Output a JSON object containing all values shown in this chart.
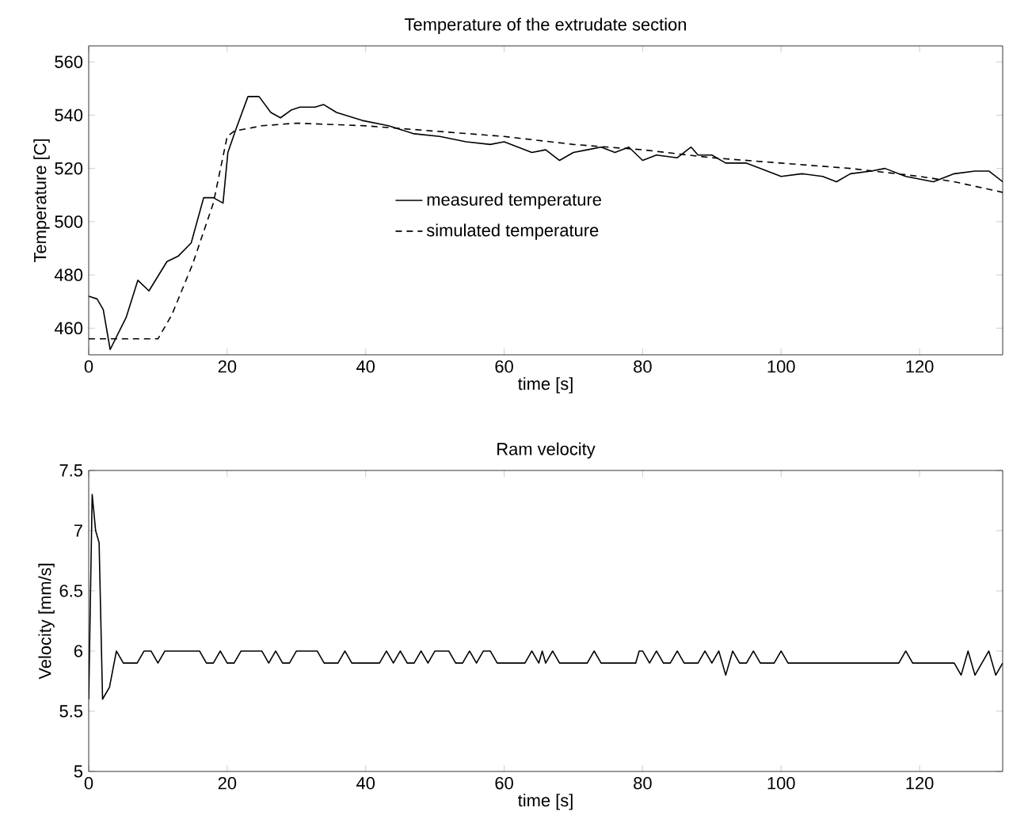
{
  "chart_data": [
    {
      "type": "line",
      "title": "Temperature of the extrudate section",
      "xlabel": "time [s]",
      "ylabel": "Temperature [C]",
      "xlim": [
        0,
        132
      ],
      "ylim": [
        450,
        566
      ],
      "xticks": [
        0,
        20,
        40,
        60,
        80,
        100,
        120
      ],
      "yticks": [
        460,
        480,
        500,
        520,
        540,
        560
      ],
      "legend": "center",
      "series": [
        {
          "name": "measured temperature",
          "color": "#000000",
          "line_style": "solid",
          "x": [
            0,
            1.2,
            2.1,
            3.1,
            3.5,
            4.5,
            5.4,
            7.1,
            8.7,
            11.3,
            12.9,
            14.8,
            16.6,
            18,
            19.4,
            20.1,
            21.3,
            23,
            24.6,
            26.3,
            27.7,
            29.3,
            30.5,
            32.7,
            33.9,
            35.8,
            39.5,
            43.3,
            47,
            50.7,
            54.5,
            58,
            60,
            62,
            64,
            66,
            68,
            70,
            72,
            74,
            76,
            78,
            80,
            82,
            85,
            87,
            88,
            90,
            92,
            95,
            98,
            100,
            103,
            106,
            108,
            110,
            113,
            115,
            118,
            122,
            125,
            128,
            130,
            132
          ],
          "values": [
            472,
            471,
            467,
            452,
            null,
            null,
            464,
            478,
            474,
            485,
            487,
            492,
            509,
            509,
            507,
            526,
            535,
            547,
            547,
            541,
            539,
            542,
            543,
            543,
            544,
            541,
            538,
            536,
            533,
            532,
            530,
            529,
            530,
            528,
            526,
            527,
            523,
            526,
            527,
            528,
            526,
            528,
            523,
            525,
            524,
            528,
            525,
            525,
            522,
            522,
            519,
            517,
            518,
            517,
            515,
            518,
            519,
            520,
            517,
            515,
            518,
            519,
            519,
            515
          ]
        },
        {
          "name": "simulated temperature",
          "color": "#000000",
          "line_style": "dashed",
          "x": [
            0,
            10,
            12,
            15,
            18,
            20,
            21,
            25,
            30,
            40,
            50,
            60,
            70,
            80,
            90,
            100,
            110,
            120,
            125,
            132
          ],
          "values": [
            456,
            456,
            465,
            484,
            507,
            532,
            534,
            536,
            537,
            536,
            534,
            532,
            529,
            527,
            524,
            522,
            520,
            517,
            515,
            511
          ]
        }
      ]
    },
    {
      "type": "line",
      "title": "Ram velocity",
      "xlabel": "time [s]",
      "ylabel": "Velocity [mm/s]",
      "xlim": [
        0,
        132
      ],
      "ylim": [
        5,
        7.5
      ],
      "xticks": [
        0,
        20,
        40,
        60,
        80,
        100,
        120
      ],
      "yticks": [
        5,
        5.5,
        6,
        6.5,
        7,
        7.5
      ],
      "series": [
        {
          "color": "#000000",
          "line_style": "solid",
          "x": [
            0,
            0.5,
            1,
            1.5,
            2,
            3,
            4,
            5,
            7,
            8,
            9,
            10,
            11,
            16,
            17,
            18,
            19,
            20,
            21,
            22,
            25,
            26,
            27,
            28,
            29,
            30,
            33,
            34,
            36,
            37,
            38,
            42,
            43,
            44,
            45,
            46,
            47,
            48,
            49,
            50,
            52,
            53,
            54,
            55,
            56,
            57,
            58,
            59,
            63,
            64,
            65,
            65.5,
            66,
            67,
            68,
            72,
            73,
            74,
            79,
            79.5,
            80,
            81,
            82,
            83,
            84,
            85,
            86,
            88,
            89,
            90,
            91,
            92,
            93,
            94,
            95,
            96,
            97,
            99,
            100,
            101,
            117,
            118,
            119,
            125,
            126,
            127,
            128,
            129,
            130,
            131,
            132
          ],
          "values": [
            5.6,
            7.3,
            7.0,
            6.9,
            5.6,
            5.7,
            6.0,
            5.9,
            5.9,
            6.0,
            6.0,
            5.9,
            6.0,
            6.0,
            5.9,
            5.9,
            6.0,
            5.9,
            5.9,
            6.0,
            6.0,
            5.9,
            6.0,
            5.9,
            5.9,
            6.0,
            6.0,
            5.9,
            5.9,
            6.0,
            5.9,
            5.9,
            6.0,
            5.9,
            6.0,
            5.9,
            5.9,
            6.0,
            5.9,
            6.0,
            6.0,
            5.9,
            5.9,
            6.0,
            5.9,
            6.0,
            6.0,
            5.9,
            5.9,
            6.0,
            5.9,
            6.0,
            5.9,
            6.0,
            5.9,
            5.9,
            6.0,
            5.9,
            5.9,
            6.0,
            6.0,
            5.9,
            6.0,
            5.9,
            5.9,
            6.0,
            5.9,
            5.9,
            6.0,
            5.9,
            6.0,
            5.8,
            6.0,
            5.9,
            5.9,
            6.0,
            5.9,
            5.9,
            6.0,
            5.9,
            5.9,
            6.0,
            5.9,
            5.9,
            5.8,
            6.0,
            5.8,
            5.9,
            6.0,
            5.8,
            5.9
          ]
        }
      ]
    }
  ]
}
